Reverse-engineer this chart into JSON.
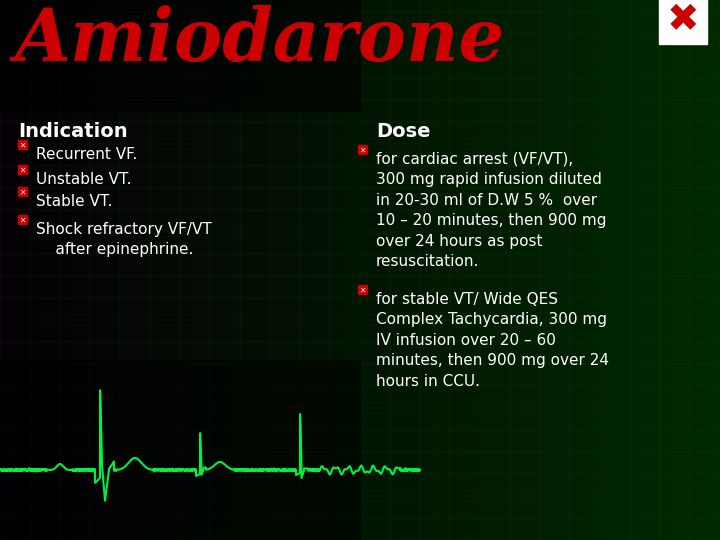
{
  "title": "Amiodarone",
  "title_color": "#cc0000",
  "title_fontsize": 52,
  "bg_color": "#050505",
  "text_color": "#ffffff",
  "indication_header": "Indication",
  "dose_header": "Dose",
  "header_fontsize": 14,
  "body_fontsize": 11,
  "indication_items": [
    "Recurrent VF.",
    "Unstable VT.",
    "Stable VT.",
    "Shock refractory VF/VT\n    after epinephrine."
  ],
  "dose_items": [
    "for cardiac arrest (VF/VT),\n300 mg rapid infusion diluted\nin 20-30 ml of D.W 5 %  over\n10 – 20 minutes, then 900 mg\nover 24 hours as post\nresuscitation.",
    "for stable VT/ Wide QES\nComplex Tachycardia, 300 mg\nIV infusion over 20 – 60\nminutes, then 900 mg over 24\nhours in CCU."
  ],
  "bullet_color": "#cc0000",
  "ecg_color": "#00ff44",
  "green_bg": "#0a2a0a",
  "grid_color": "#1a5a1a"
}
